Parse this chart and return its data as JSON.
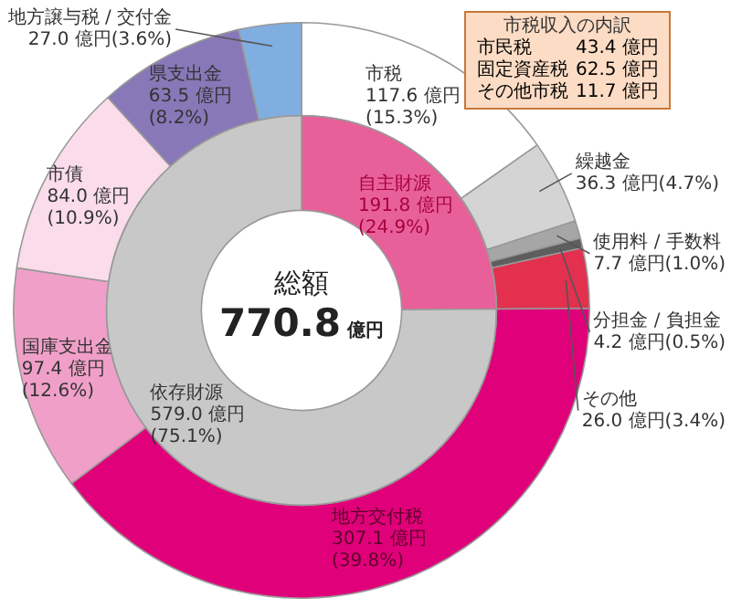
{
  "chart_data": [
    {
      "type": "donut",
      "categories": [
        "市税",
        "繰越金",
        "使用料 / 手数料",
        "分担金 / 負担金",
        "その他",
        "地方交付税",
        "国庫支出金",
        "市債",
        "県支出金",
        "地方譲与税 / 交付金"
      ],
      "values": [
        117.6,
        36.3,
        7.7,
        4.2,
        26.0,
        307.1,
        97.4,
        84.0,
        63.5,
        27.0
      ],
      "colors": [
        "#ffffff",
        "#d4d4d4",
        "#a6a6a6",
        "#5e5e5e",
        "#e2304e",
        "#e0007a",
        "#f0a0c8",
        "#fbdcea",
        "#8878b8",
        "#80aee0"
      ],
      "value_labels": [
        "117.6 億円(15.3%)",
        "36.3 億円(4.7%)",
        "7.7 億円(1.0%)",
        "4.2 億円(0.5%)",
        "26.0 億円(3.4%)",
        "307.1 億円(39.8%)",
        "97.4 億円(12.6%)",
        "84.0 億円(10.9%)",
        "63.5 億円(8.2%)",
        "27.0 億円(3.6%)"
      ],
      "annotations": [
        "市税収入の内訳",
        "市民税 43.4 億円",
        "固定資産税 62.5 億円",
        "その他市税 11.7 億円"
      ]
    },
    {
      "type": "donut",
      "categories": [
        "自主財源",
        "依存財源"
      ],
      "values": [
        191.8,
        579.0
      ],
      "colors": [
        "#e8609a",
        "#c8c8c8"
      ],
      "value_labels": [
        "191.8 億円(24.9%)",
        "579.0 億円(75.1%)"
      ],
      "annotations": [
        "総額",
        "770.8 億円"
      ]
    }
  ]
}
